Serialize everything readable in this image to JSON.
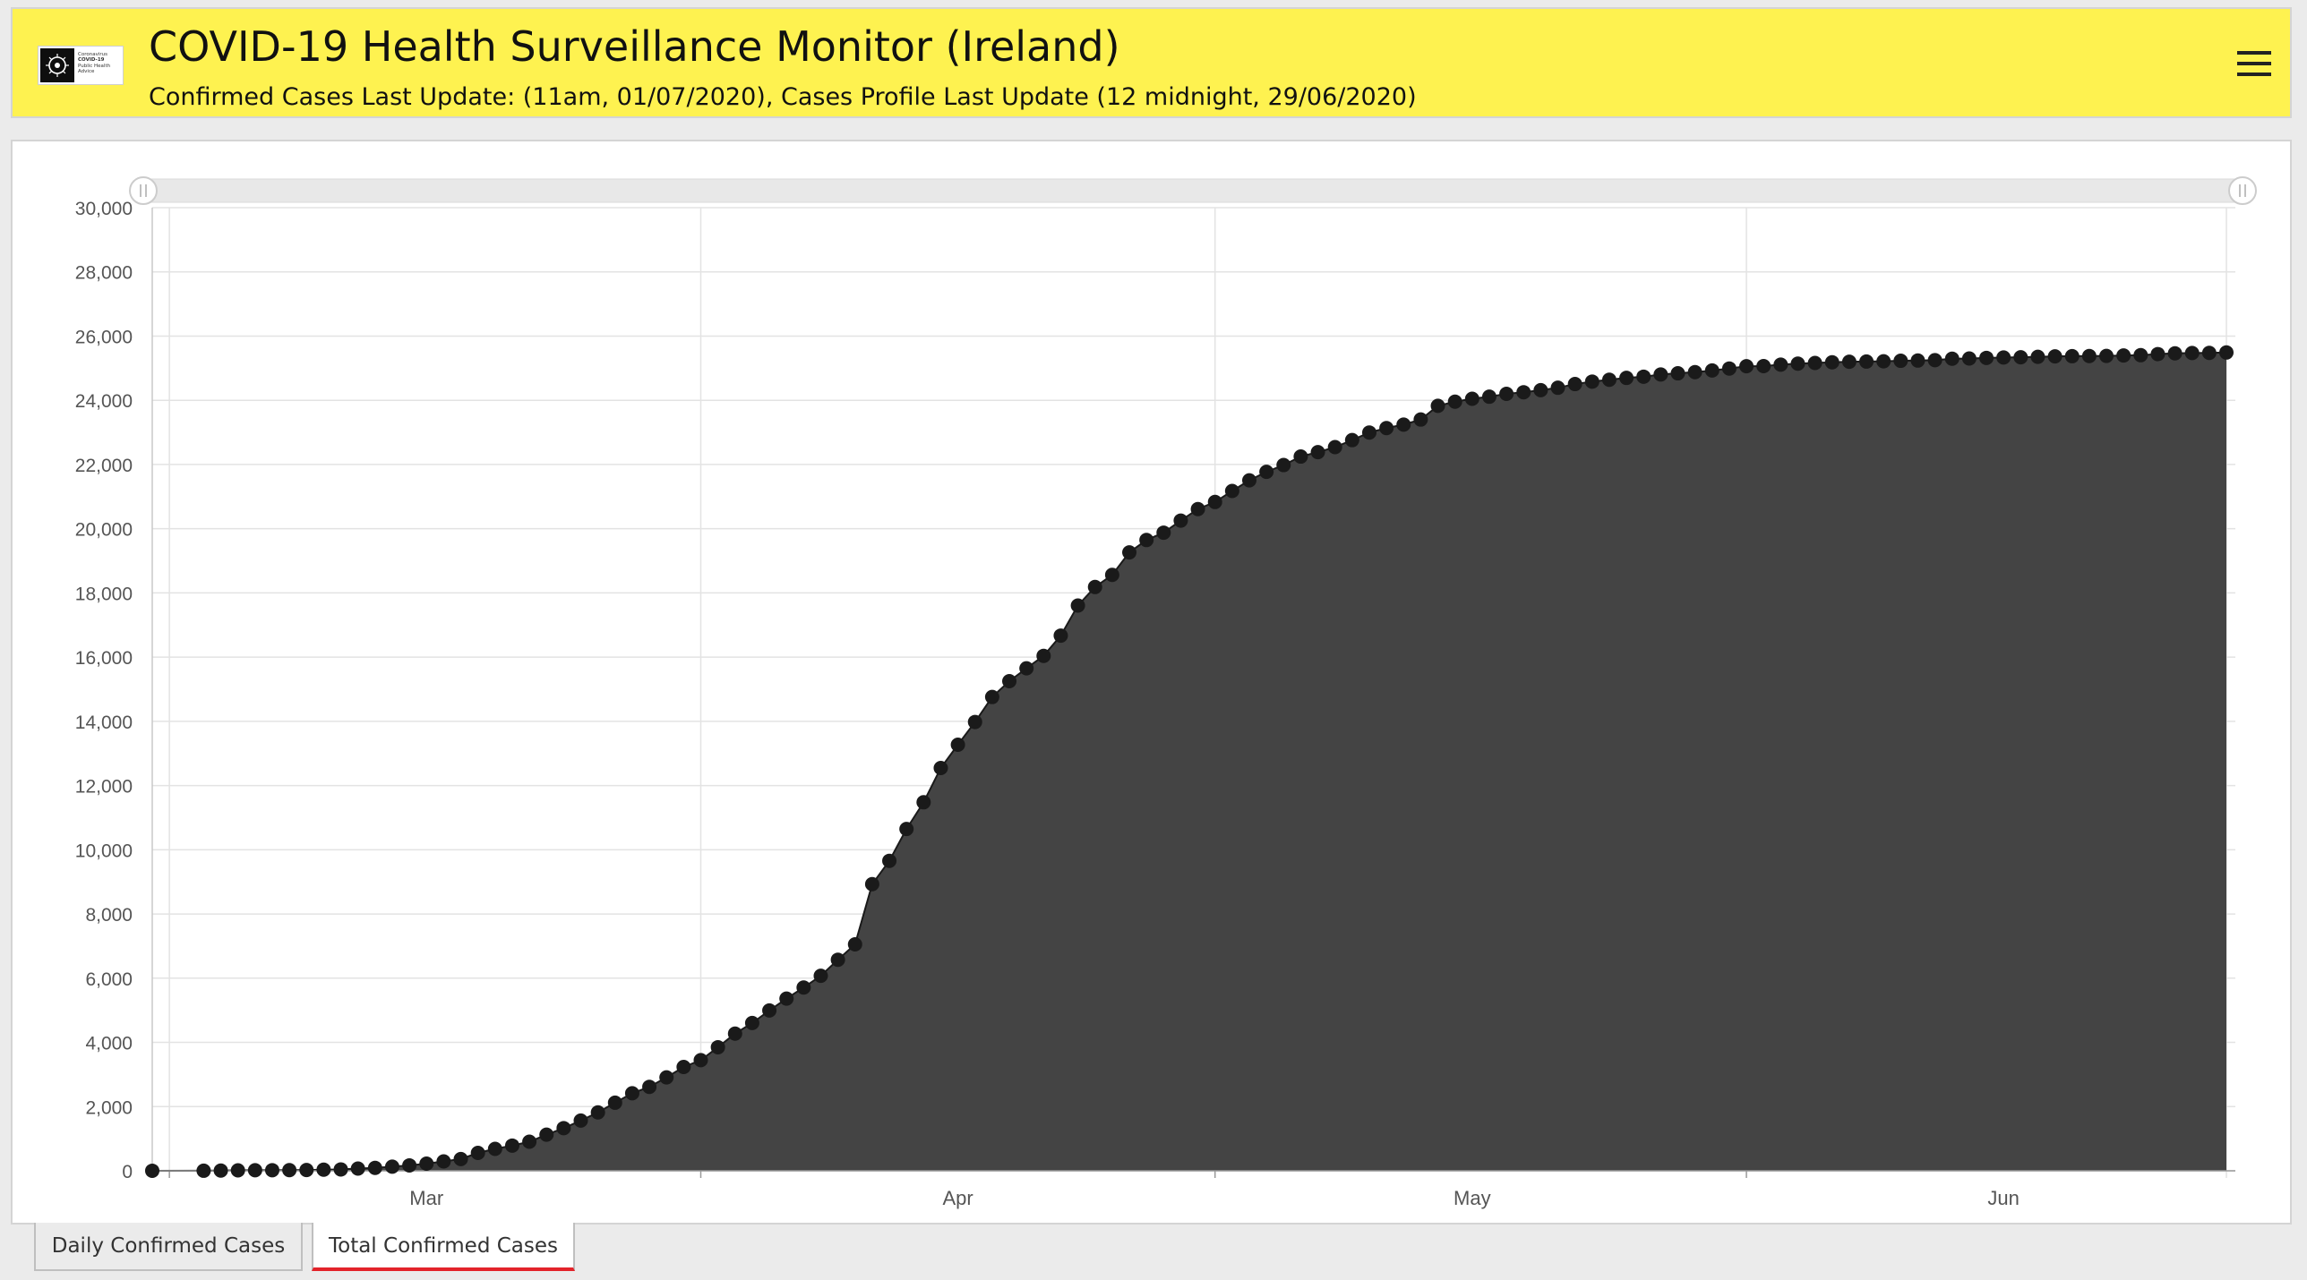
{
  "header": {
    "logo_text": [
      "Coronavirus",
      "COVID-19",
      "Public Health",
      "Advice"
    ],
    "title": "COVID-19 Health Surveillance Monitor (Ireland)",
    "subtitle": "Confirmed Cases Last Update: (11am, 01/07/2020), Cases Profile Last Update (12 midnight, 29/06/2020)"
  },
  "tabs": [
    {
      "label": "Daily Confirmed Cases",
      "active": false
    },
    {
      "label": "Total Confirmed Cases",
      "active": true
    }
  ],
  "colors": {
    "header_bg": "#fef250",
    "area_fill": "#444444",
    "marker": "#1a1a1a",
    "active_tab_underline": "#e3232a"
  },
  "chart_data": {
    "type": "area",
    "markers": true,
    "x_axis_type": "date",
    "x_start": "2020-02-29",
    "x_end": "2020-06-29",
    "x_tick_labels": [
      {
        "label": "Mar",
        "date": "2020-03-16"
      },
      {
        "label": "Apr",
        "date": "2020-04-16"
      },
      {
        "label": "May",
        "date": "2020-05-16"
      },
      {
        "label": "Jun",
        "date": "2020-06-16"
      }
    ],
    "x_gridlines": [
      "2020-03-01",
      "2020-04-01",
      "2020-05-01",
      "2020-06-01"
    ],
    "ylim": [
      0,
      30000
    ],
    "yticks": [
      0,
      2000,
      4000,
      6000,
      8000,
      10000,
      12000,
      14000,
      16000,
      18000,
      20000,
      22000,
      24000,
      26000,
      28000,
      30000
    ],
    "ytick_labels": [
      "0",
      "2,000",
      "4,000",
      "6,000",
      "8,000",
      "10,000",
      "12,000",
      "14,000",
      "16,000",
      "18,000",
      "20,000",
      "22,000",
      "24,000",
      "26,000",
      "28,000",
      "30,000"
    ],
    "range_slider": true,
    "points": [
      [
        "2020-02-29",
        1
      ],
      [
        "2020-03-03",
        2
      ],
      [
        "2020-03-04",
        6
      ],
      [
        "2020-03-05",
        13
      ],
      [
        "2020-03-06",
        18
      ],
      [
        "2020-03-07",
        19
      ],
      [
        "2020-03-08",
        21
      ],
      [
        "2020-03-09",
        24
      ],
      [
        "2020-03-10",
        34
      ],
      [
        "2020-03-11",
        43
      ],
      [
        "2020-03-12",
        70
      ],
      [
        "2020-03-13",
        90
      ],
      [
        "2020-03-14",
        129
      ],
      [
        "2020-03-15",
        169
      ],
      [
        "2020-03-16",
        223
      ],
      [
        "2020-03-17",
        292
      ],
      [
        "2020-03-18",
        366
      ],
      [
        "2020-03-19",
        557
      ],
      [
        "2020-03-20",
        683
      ],
      [
        "2020-03-21",
        785
      ],
      [
        "2020-03-22",
        906
      ],
      [
        "2020-03-23",
        1125
      ],
      [
        "2020-03-24",
        1329
      ],
      [
        "2020-03-25",
        1564
      ],
      [
        "2020-03-26",
        1819
      ],
      [
        "2020-03-27",
        2121
      ],
      [
        "2020-03-28",
        2415
      ],
      [
        "2020-03-29",
        2615
      ],
      [
        "2020-03-30",
        2910
      ],
      [
        "2020-03-31",
        3235
      ],
      [
        "2020-04-01",
        3447
      ],
      [
        "2020-04-02",
        3849
      ],
      [
        "2020-04-03",
        4273
      ],
      [
        "2020-04-04",
        4604
      ],
      [
        "2020-04-05",
        4994
      ],
      [
        "2020-04-06",
        5364
      ],
      [
        "2020-04-07",
        5709
      ],
      [
        "2020-04-08",
        6074
      ],
      [
        "2020-04-09",
        6574
      ],
      [
        "2020-04-10",
        7054
      ],
      [
        "2020-04-11",
        8928
      ],
      [
        "2020-04-12",
        9655
      ],
      [
        "2020-04-13",
        10647
      ],
      [
        "2020-04-14",
        11479
      ],
      [
        "2020-04-15",
        12547
      ],
      [
        "2020-04-16",
        13271
      ],
      [
        "2020-04-17",
        13980
      ],
      [
        "2020-04-18",
        14758
      ],
      [
        "2020-04-19",
        15251
      ],
      [
        "2020-04-20",
        15652
      ],
      [
        "2020-04-21",
        16040
      ],
      [
        "2020-04-22",
        16671
      ],
      [
        "2020-04-23",
        17607
      ],
      [
        "2020-04-24",
        18184
      ],
      [
        "2020-04-25",
        18561
      ],
      [
        "2020-04-26",
        19262
      ],
      [
        "2020-04-27",
        19648
      ],
      [
        "2020-04-28",
        19877
      ],
      [
        "2020-04-29",
        20253
      ],
      [
        "2020-04-30",
        20612
      ],
      [
        "2020-05-01",
        20833
      ],
      [
        "2020-05-02",
        21176
      ],
      [
        "2020-05-03",
        21506
      ],
      [
        "2020-05-04",
        21772
      ],
      [
        "2020-05-05",
        21983
      ],
      [
        "2020-05-06",
        22248
      ],
      [
        "2020-05-07",
        22385
      ],
      [
        "2020-05-08",
        22541
      ],
      [
        "2020-05-09",
        22760
      ],
      [
        "2020-05-10",
        22996
      ],
      [
        "2020-05-11",
        23135
      ],
      [
        "2020-05-12",
        23242
      ],
      [
        "2020-05-13",
        23401
      ],
      [
        "2020-05-14",
        23827
      ],
      [
        "2020-05-15",
        23956
      ],
      [
        "2020-05-16",
        24048
      ],
      [
        "2020-05-17",
        24112
      ],
      [
        "2020-05-18",
        24200
      ],
      [
        "2020-05-19",
        24251
      ],
      [
        "2020-05-20",
        24315
      ],
      [
        "2020-05-21",
        24391
      ],
      [
        "2020-05-22",
        24506
      ],
      [
        "2020-05-23",
        24582
      ],
      [
        "2020-05-24",
        24639
      ],
      [
        "2020-05-25",
        24698
      ],
      [
        "2020-05-26",
        24735
      ],
      [
        "2020-05-27",
        24803
      ],
      [
        "2020-05-28",
        24841
      ],
      [
        "2020-05-29",
        24876
      ],
      [
        "2020-05-30",
        24929
      ],
      [
        "2020-05-31",
        24990
      ],
      [
        "2020-06-01",
        25062
      ],
      [
        "2020-06-02",
        25066
      ],
      [
        "2020-06-03",
        25111
      ],
      [
        "2020-06-04",
        25142
      ],
      [
        "2020-06-05",
        25163
      ],
      [
        "2020-06-06",
        25183
      ],
      [
        "2020-06-07",
        25201
      ],
      [
        "2020-06-08",
        25207
      ],
      [
        "2020-06-09",
        25215
      ],
      [
        "2020-06-10",
        25231
      ],
      [
        "2020-06-11",
        25238
      ],
      [
        "2020-06-12",
        25250
      ],
      [
        "2020-06-13",
        25295
      ],
      [
        "2020-06-14",
        25303
      ],
      [
        "2020-06-15",
        25321
      ],
      [
        "2020-06-16",
        25334
      ],
      [
        "2020-06-17",
        25341
      ],
      [
        "2020-06-18",
        25355
      ],
      [
        "2020-06-19",
        25368
      ],
      [
        "2020-06-20",
        25374
      ],
      [
        "2020-06-21",
        25379
      ],
      [
        "2020-06-22",
        25383
      ],
      [
        "2020-06-23",
        25396
      ],
      [
        "2020-06-24",
        25405
      ],
      [
        "2020-06-25",
        25439
      ],
      [
        "2020-06-26",
        25462
      ],
      [
        "2020-06-27",
        25473
      ],
      [
        "2020-06-28",
        25477
      ],
      [
        "2020-06-29",
        25489
      ]
    ]
  }
}
